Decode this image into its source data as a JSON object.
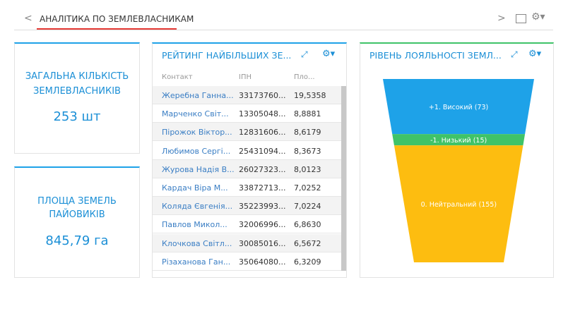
{
  "header": {
    "title": "АНАЛІТИКА ПО ЗЕМЛЕВЛАСНИКАМ"
  },
  "widgets": [
    {
      "title_lines": [
        "ЗАГАЛЬНА КІЛЬКІСТЬ",
        "ЗЕМЛЕВЛАСНИКІВ"
      ],
      "value": "253 шт"
    },
    {
      "title_lines": [
        "ПЛОЩА ЗЕМЕЛЬ",
        "ПАЙОВИКІВ"
      ],
      "value": "845,79 га"
    }
  ],
  "table": {
    "title": "РЕЙТИНГ НАЙБІЛЬШИХ ЗЕ...",
    "columns": [
      "Контакт",
      "ІПН",
      "Пло..."
    ],
    "rows": [
      [
        "Жеребна Ганна...",
        "33173760...",
        "19,5358"
      ],
      [
        "Марченко Світ...",
        "13305048...",
        "8,8881"
      ],
      [
        "Пірожок Віктор...",
        "12831606...",
        "8,6179"
      ],
      [
        "Любимов Сергі...",
        "25431094...",
        "8,3673"
      ],
      [
        "Журова Надія В...",
        "26027323...",
        "8,0123"
      ],
      [
        "Кардач Віра М...",
        "33872713...",
        "7,0252"
      ],
      [
        "Коляда Євгенія...",
        "35223993...",
        "7,0224"
      ],
      [
        "Павлов Микол...",
        "32006996...",
        "6,8630"
      ],
      [
        "Клочкова Світл...",
        "30085016...",
        "6,5672"
      ],
      [
        "Різаханова Ган...",
        "35064080...",
        "6,3209"
      ]
    ]
  },
  "chart_data": {
    "type": "funnel",
    "title": "РІВЕНЬ ЛОЯЛЬНОСТІ ЗЕМЛ...",
    "categories": [
      "+1. Високий (73)",
      "-1. Низький (15)",
      "0. Нейтральний (155)"
    ],
    "values": [
      73,
      15,
      155
    ],
    "colors": [
      "#1ea2e8",
      "#3fc368",
      "#fdbd10"
    ]
  }
}
